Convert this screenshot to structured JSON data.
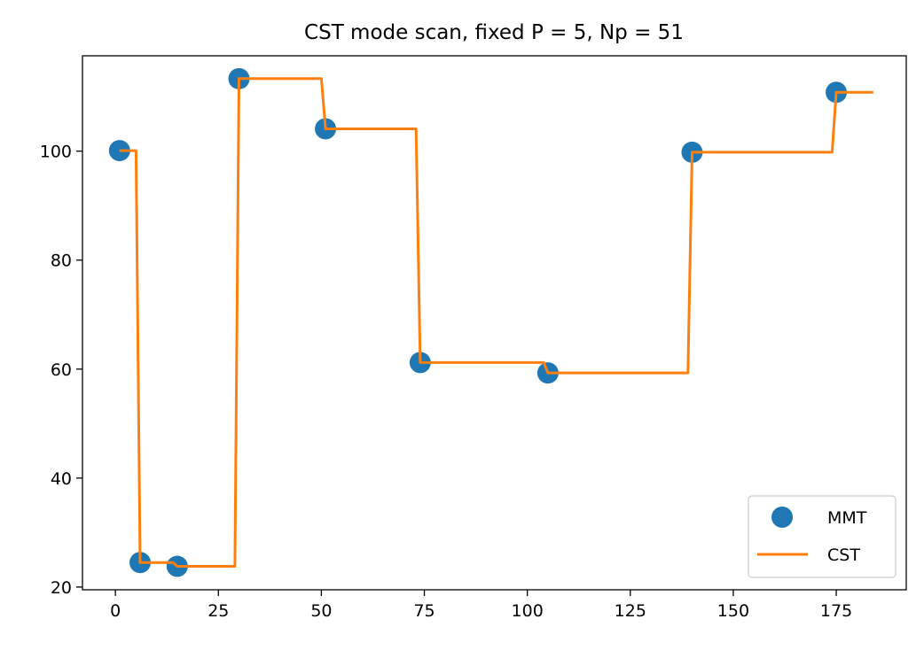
{
  "chart_data": {
    "type": "line",
    "title": "CST mode scan, fixed P = 5, Np = 51",
    "xlabel": "",
    "ylabel": "",
    "xlim": [
      -8,
      192
    ],
    "ylim": [
      19.5,
      117.5
    ],
    "x_ticks": [
      0,
      25,
      50,
      75,
      100,
      125,
      150,
      175
    ],
    "y_ticks": [
      20,
      40,
      60,
      80,
      100
    ],
    "grid": false,
    "legend": {
      "placement": "lower-right",
      "entries": [
        "MMT",
        "CST"
      ]
    },
    "series": [
      {
        "name": "MMT",
        "kind": "scatter",
        "color": "#1f77b4",
        "x": [
          1,
          6,
          15,
          30,
          51,
          74,
          105,
          140,
          175
        ],
        "y": [
          100.1,
          24.5,
          23.8,
          113.3,
          104.1,
          61.2,
          59.3,
          99.8,
          110.8
        ]
      },
      {
        "name": "CST",
        "kind": "line",
        "color": "#ff7f0e",
        "x": [
          1,
          5,
          6,
          14,
          15,
          29,
          30,
          50,
          51,
          73,
          74,
          104,
          105,
          139,
          140,
          174,
          175,
          184
        ],
        "y": [
          100.1,
          100.1,
          24.5,
          24.5,
          23.8,
          23.8,
          113.3,
          113.3,
          104.1,
          104.1,
          61.2,
          61.2,
          59.3,
          59.3,
          99.8,
          99.8,
          110.8,
          110.8
        ]
      }
    ]
  }
}
